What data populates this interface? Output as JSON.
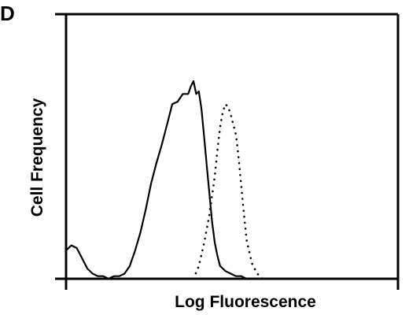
{
  "panel_label": "D",
  "chart_data": {
    "type": "line",
    "title": "",
    "xlabel": "Log Fluorescence",
    "ylabel": "Cell Frequency",
    "xscale": "log",
    "xticks_labeled": false,
    "yticks_labeled": false,
    "grid": false,
    "legend": "none",
    "xlim": [
      0,
      100
    ],
    "ylim": [
      0,
      100
    ],
    "series": [
      {
        "style": "solid",
        "color": "#000000",
        "x": [
          0,
          2,
          4,
          6,
          8,
          10,
          12,
          14,
          16,
          18,
          20,
          22,
          24,
          26,
          28,
          30,
          32,
          34,
          36,
          38,
          40,
          42,
          44,
          46,
          47,
          48,
          49,
          50,
          51,
          52,
          53,
          54,
          55,
          56,
          57,
          58,
          60,
          62,
          64,
          66,
          68,
          70
        ],
        "y": [
          11,
          13,
          12,
          8,
          4,
          2,
          1,
          1,
          0,
          1,
          1,
          2,
          5,
          11,
          18,
          27,
          37,
          45,
          52,
          60,
          68,
          69,
          72,
          72,
          75,
          77,
          72,
          73,
          66,
          55,
          44,
          33,
          22,
          14,
          9,
          5,
          3,
          2,
          1,
          1,
          0,
          0
        ]
      },
      {
        "style": "dotted",
        "color": "#000000",
        "x": [
          48,
          50,
          52,
          54,
          56,
          57,
          58,
          59,
          60,
          61,
          62,
          63,
          64,
          65,
          66,
          67,
          68,
          70,
          72,
          74
        ],
        "y": [
          0,
          5,
          14,
          25,
          40,
          50,
          59,
          65,
          68,
          67,
          64,
          60,
          56,
          47,
          36,
          25,
          15,
          6,
          2,
          0
        ]
      }
    ]
  }
}
